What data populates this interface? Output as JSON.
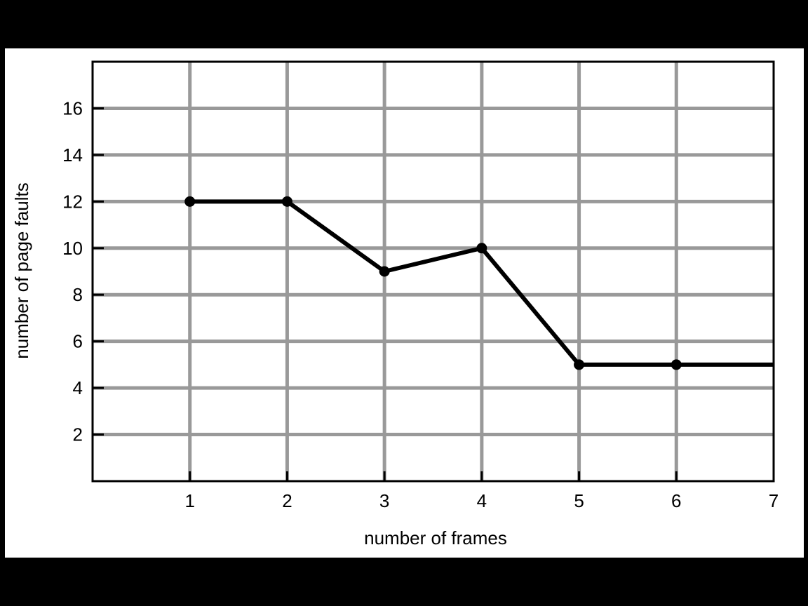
{
  "chart_data": {
    "type": "line",
    "title": "",
    "xlabel": "number of frames",
    "ylabel": "number of page faults",
    "xlim": [
      0,
      7
    ],
    "ylim": [
      0,
      18
    ],
    "x_ticks": [
      1,
      2,
      3,
      4,
      5,
      6,
      7
    ],
    "y_ticks": [
      2,
      4,
      6,
      8,
      10,
      12,
      14,
      16
    ],
    "grid": true,
    "legend": "none",
    "series": [
      {
        "x": [
          1,
          2,
          3,
          4,
          5,
          6,
          7
        ],
        "y": [
          12,
          12,
          9,
          10,
          5,
          5,
          5
        ],
        "markers": [
          true,
          true,
          true,
          true,
          true,
          true,
          false
        ]
      }
    ]
  },
  "colors": {
    "grid": "#999999",
    "line": "#000000",
    "background": "#ffffff",
    "frame": "#000000"
  }
}
